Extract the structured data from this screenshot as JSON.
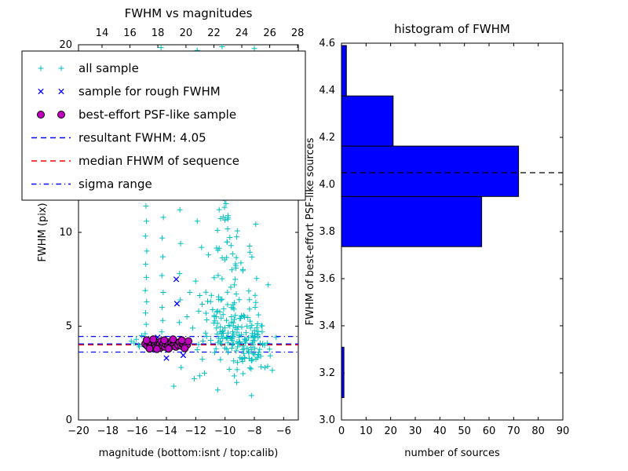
{
  "chart_data": [
    {
      "id": "scatter",
      "type": "scatter",
      "title": "FWHM vs magnitudes",
      "xlabel": "magnitude (bottom:isnt / top:calib)",
      "ylabel": "FWHM (pix)",
      "xlim": [
        -20,
        -5
      ],
      "ylim": [
        0,
        20
      ],
      "x_ticks": {
        "values": [
          -20,
          -18,
          -16,
          -14,
          -12,
          -10,
          -8,
          -6
        ],
        "labels": [
          "−20",
          "−18",
          "−16",
          "−14",
          "−12",
          "−10",
          "−8",
          "−6"
        ]
      },
      "top_ticks": {
        "fractions": [
          0.107,
          0.234,
          0.361,
          0.489,
          0.616,
          0.743,
          0.87,
          0.997
        ],
        "labels": [
          "14",
          "16",
          "18",
          "20",
          "22",
          "24",
          "26",
          "28"
        ]
      },
      "y_ticks": {
        "values": [
          0,
          5,
          10,
          15,
          20
        ],
        "labels": [
          "0",
          "5",
          "10",
          "15",
          "20"
        ]
      },
      "series": {
        "all_sample": {
          "label": "all sample",
          "marker": "plus",
          "color": "#00bfbf",
          "points": [
            [
              -15.45,
              4.6
            ],
            [
              -15.38,
              5.1
            ],
            [
              -15.42,
              5.7
            ],
            [
              -15.35,
              6.3
            ],
            [
              -15.44,
              6.9
            ],
            [
              -15.37,
              7.6
            ],
            [
              -15.41,
              8.3
            ],
            [
              -15.34,
              9.0
            ],
            [
              -15.43,
              9.8
            ],
            [
              -15.36,
              10.6
            ],
            [
              -15.4,
              11.4
            ],
            [
              -15.33,
              12.2
            ],
            [
              -15.42,
              13.1
            ],
            [
              -15.37,
              14.0
            ],
            [
              -15.4,
              15.0
            ],
            [
              -15.35,
              16.0
            ],
            [
              -15.41,
              17.0
            ],
            [
              -15.38,
              18.1
            ],
            [
              -15.36,
              19.2
            ],
            [
              -14.32,
              4.7
            ],
            [
              -14.25,
              5.3
            ],
            [
              -14.3,
              6.0
            ],
            [
              -14.22,
              6.8
            ],
            [
              -14.31,
              7.7
            ],
            [
              -14.24,
              8.7
            ],
            [
              -14.29,
              9.7
            ],
            [
              -14.21,
              10.8
            ],
            [
              -14.3,
              11.9
            ],
            [
              -14.23,
              13.0
            ],
            [
              -14.28,
              14.2
            ],
            [
              -14.2,
              15.4
            ],
            [
              -14.27,
              16.6
            ],
            [
              -14.22,
              17.8
            ],
            [
              -14.26,
              19.0
            ],
            [
              -14.37,
              19.85
            ],
            [
              -13.12,
              5.2
            ],
            [
              -13.05,
              6.4
            ],
            [
              -13.1,
              7.8
            ],
            [
              -13.03,
              9.4
            ],
            [
              -13.08,
              11.2
            ],
            [
              -13.02,
              13.2
            ],
            [
              -13.07,
              15.3
            ],
            [
              -13.04,
              17.5
            ],
            [
              -11.9,
              19.7
            ],
            [
              -10.2,
              19.9
            ],
            [
              -8.1,
              19.5
            ],
            [
              -8.0,
              19.8
            ],
            [
              -9.0,
              18.3
            ],
            [
              -10.8,
              16.8
            ],
            [
              -7.6,
              15.2
            ],
            [
              -12.3,
              18.8
            ],
            [
              -11.2,
              15.8
            ],
            [
              -9.6,
              14.5
            ],
            [
              -16.2,
              4.1
            ],
            [
              -16.05,
              4.3
            ],
            [
              -15.85,
              3.9
            ],
            [
              -16.4,
              4.2
            ],
            [
              -15.7,
              4.5
            ],
            [
              -15.9,
              4.0
            ],
            [
              -13.5,
              1.8
            ],
            [
              -12.1,
              2.2
            ],
            [
              -10.5,
              1.6
            ],
            [
              -9.2,
              2.0
            ],
            [
              -8.2,
              1.3
            ],
            [
              -11.4,
              2.5
            ],
            [
              -13.0,
              2.8
            ],
            [
              -12.6,
              5.5
            ],
            [
              -12.4,
              6.8
            ],
            [
              -12.2,
              4.9
            ],
            [
              -12.0,
              7.4
            ],
            [
              -11.8,
              5.8
            ],
            [
              -11.6,
              9.2
            ],
            [
              -11.9,
              10.6
            ],
            [
              -12.1,
              12.0
            ],
            [
              -11.7,
              13.5
            ]
          ],
          "clusters": [
            {
              "cx": -9.4,
              "cy": 4.8,
              "sx": 1.25,
              "sy": 1.3,
              "n": 150,
              "seed": 7,
              "clip": [
                -11.9,
                -6.3,
                2.3,
                9.5
              ]
            },
            {
              "cx": -9.9,
              "cy": 8.0,
              "sx": 0.85,
              "sy": 1.8,
              "n": 45,
              "seed": 13,
              "clip": [
                -11.5,
                -7.5,
                5.0,
                13.5
              ]
            },
            {
              "cx": -8.3,
              "cy": 4.0,
              "sx": 0.7,
              "sy": 0.8,
              "n": 55,
              "seed": 21,
              "clip": [
                -10.0,
                -6.4,
                2.2,
                6.5
              ]
            },
            {
              "cx": -10.15,
              "cy": 11.0,
              "sx": 0.45,
              "sy": 1.4,
              "n": 18,
              "seed": 31,
              "clip": [
                -11.2,
                -9.0,
                8.0,
                14.8
              ]
            }
          ]
        },
        "rough": {
          "label": "sample for rough FWHM",
          "marker": "x",
          "color": "#0000ff",
          "points": [
            [
              -15.35,
              4.1
            ],
            [
              -14.9,
              4.0
            ],
            [
              -14.5,
              4.2
            ],
            [
              -14.2,
              3.9
            ],
            [
              -13.9,
              4.1
            ],
            [
              -13.6,
              4.0
            ],
            [
              -13.28,
              6.2
            ],
            [
              -13.33,
              7.5
            ],
            [
              -13.0,
              4.1
            ],
            [
              -12.85,
              3.45
            ],
            [
              -14.0,
              3.3
            ],
            [
              -14.6,
              4.4
            ],
            [
              -12.6,
              4.05
            ]
          ]
        },
        "psf": {
          "label": "best-effort PSF-like sample",
          "marker": "circle",
          "color": "#bf00bf",
          "edge": "#000000",
          "points": [
            [
              -15.45,
              4.05
            ],
            [
              -15.3,
              3.95
            ],
            [
              -15.2,
              4.15
            ],
            [
              -15.1,
              3.9
            ],
            [
              -15.0,
              4.1
            ],
            [
              -14.95,
              3.85
            ],
            [
              -14.85,
              4.2
            ],
            [
              -14.75,
              4.0
            ],
            [
              -14.7,
              3.9
            ],
            [
              -14.6,
              4.1
            ],
            [
              -14.55,
              3.95
            ],
            [
              -14.45,
              4.05
            ],
            [
              -14.4,
              3.85
            ],
            [
              -14.35,
              4.2
            ],
            [
              -14.25,
              3.95
            ],
            [
              -14.2,
              4.1
            ],
            [
              -14.1,
              3.9
            ],
            [
              -14.05,
              4.05
            ],
            [
              -13.95,
              4.15
            ],
            [
              -13.9,
              3.95
            ],
            [
              -13.8,
              4.05
            ],
            [
              -13.75,
              3.9
            ],
            [
              -13.65,
              4.1
            ],
            [
              -13.6,
              3.95
            ],
            [
              -13.5,
              4.2
            ],
            [
              -13.45,
              4.0
            ],
            [
              -13.35,
              3.9
            ],
            [
              -13.3,
              4.1
            ],
            [
              -13.2,
              4.0
            ],
            [
              -13.1,
              4.15
            ],
            [
              -13.0,
              3.95
            ],
            [
              -12.9,
              4.05
            ],
            [
              -12.8,
              3.95
            ],
            [
              -12.7,
              4.1
            ],
            [
              -12.6,
              4.0
            ],
            [
              -12.5,
              4.2
            ],
            [
              -15.35,
              4.25
            ],
            [
              -14.9,
              4.3
            ],
            [
              -14.15,
              4.25
            ],
            [
              -13.55,
              4.3
            ],
            [
              -12.95,
              4.25
            ],
            [
              -15.15,
              3.8
            ],
            [
              -14.65,
              3.78
            ],
            [
              -13.85,
              3.8
            ],
            [
              -12.75,
              3.82
            ]
          ]
        }
      },
      "lines": [
        {
          "name": "resultant",
          "label": "resultant FWHM: 4.05",
          "y": 4.05,
          "color": "#0000ff",
          "style": "dashed"
        },
        {
          "name": "median",
          "label": "median FHWM of sequence",
          "y": 4.0,
          "color": "#ff0000",
          "style": "dashed"
        },
        {
          "name": "sigma-upper",
          "label": "sigma range",
          "y": 4.45,
          "color": "#0000ff",
          "style": "dashdot"
        },
        {
          "name": "sigma-lower",
          "label": "sigma range",
          "y": 3.62,
          "color": "#0000ff",
          "style": "dashdot"
        }
      ],
      "legend": {
        "entries": [
          {
            "label": "all sample",
            "marker": "plus2",
            "color": "#00bfbf"
          },
          {
            "label": "sample for rough FWHM",
            "marker": "x2",
            "color": "#0000ff"
          },
          {
            "label": "best-effort PSF-like sample",
            "marker": "circle2",
            "color": "#bf00bf",
            "edge": "#000000"
          },
          {
            "label": "resultant FWHM: 4.05",
            "marker": "line",
            "color": "#0000ff",
            "dash": "dashed"
          },
          {
            "label": "median FHWM of sequence",
            "marker": "line",
            "color": "#ff0000",
            "dash": "dashed"
          },
          {
            "label": "sigma range",
            "marker": "line",
            "color": "#0000ff",
            "dash": "dashdot"
          }
        ]
      }
    },
    {
      "id": "histogram",
      "type": "bar",
      "orientation": "horizontal",
      "title": "histogram of FWHM",
      "xlabel": "number of sources",
      "ylabel": "FWHM of best-effort PSF-like sources",
      "xlim": [
        0,
        90
      ],
      "ylim": [
        3.0,
        4.6
      ],
      "bin_edges": [
        3.095,
        3.309,
        3.522,
        3.736,
        3.949,
        4.163,
        4.376,
        4.59
      ],
      "counts": [
        1,
        0,
        0,
        57,
        72,
        21,
        2
      ],
      "bar_color": "#0000ff",
      "bar_edge": "#000000",
      "dashed_line_y": 4.05,
      "x_ticks": {
        "values": [
          0,
          10,
          20,
          30,
          40,
          50,
          60,
          70,
          80,
          90
        ],
        "labels": [
          "0",
          "10",
          "20",
          "30",
          "40",
          "50",
          "60",
          "70",
          "80",
          "90"
        ]
      },
      "y_ticks": {
        "values": [
          3.0,
          3.2,
          3.4,
          3.6,
          3.8,
          4.0,
          4.2,
          4.4,
          4.6
        ],
        "labels": [
          "3.0",
          "3.2",
          "3.4",
          "3.6",
          "3.8",
          "4.0",
          "4.2",
          "4.4",
          "4.6"
        ]
      }
    }
  ]
}
